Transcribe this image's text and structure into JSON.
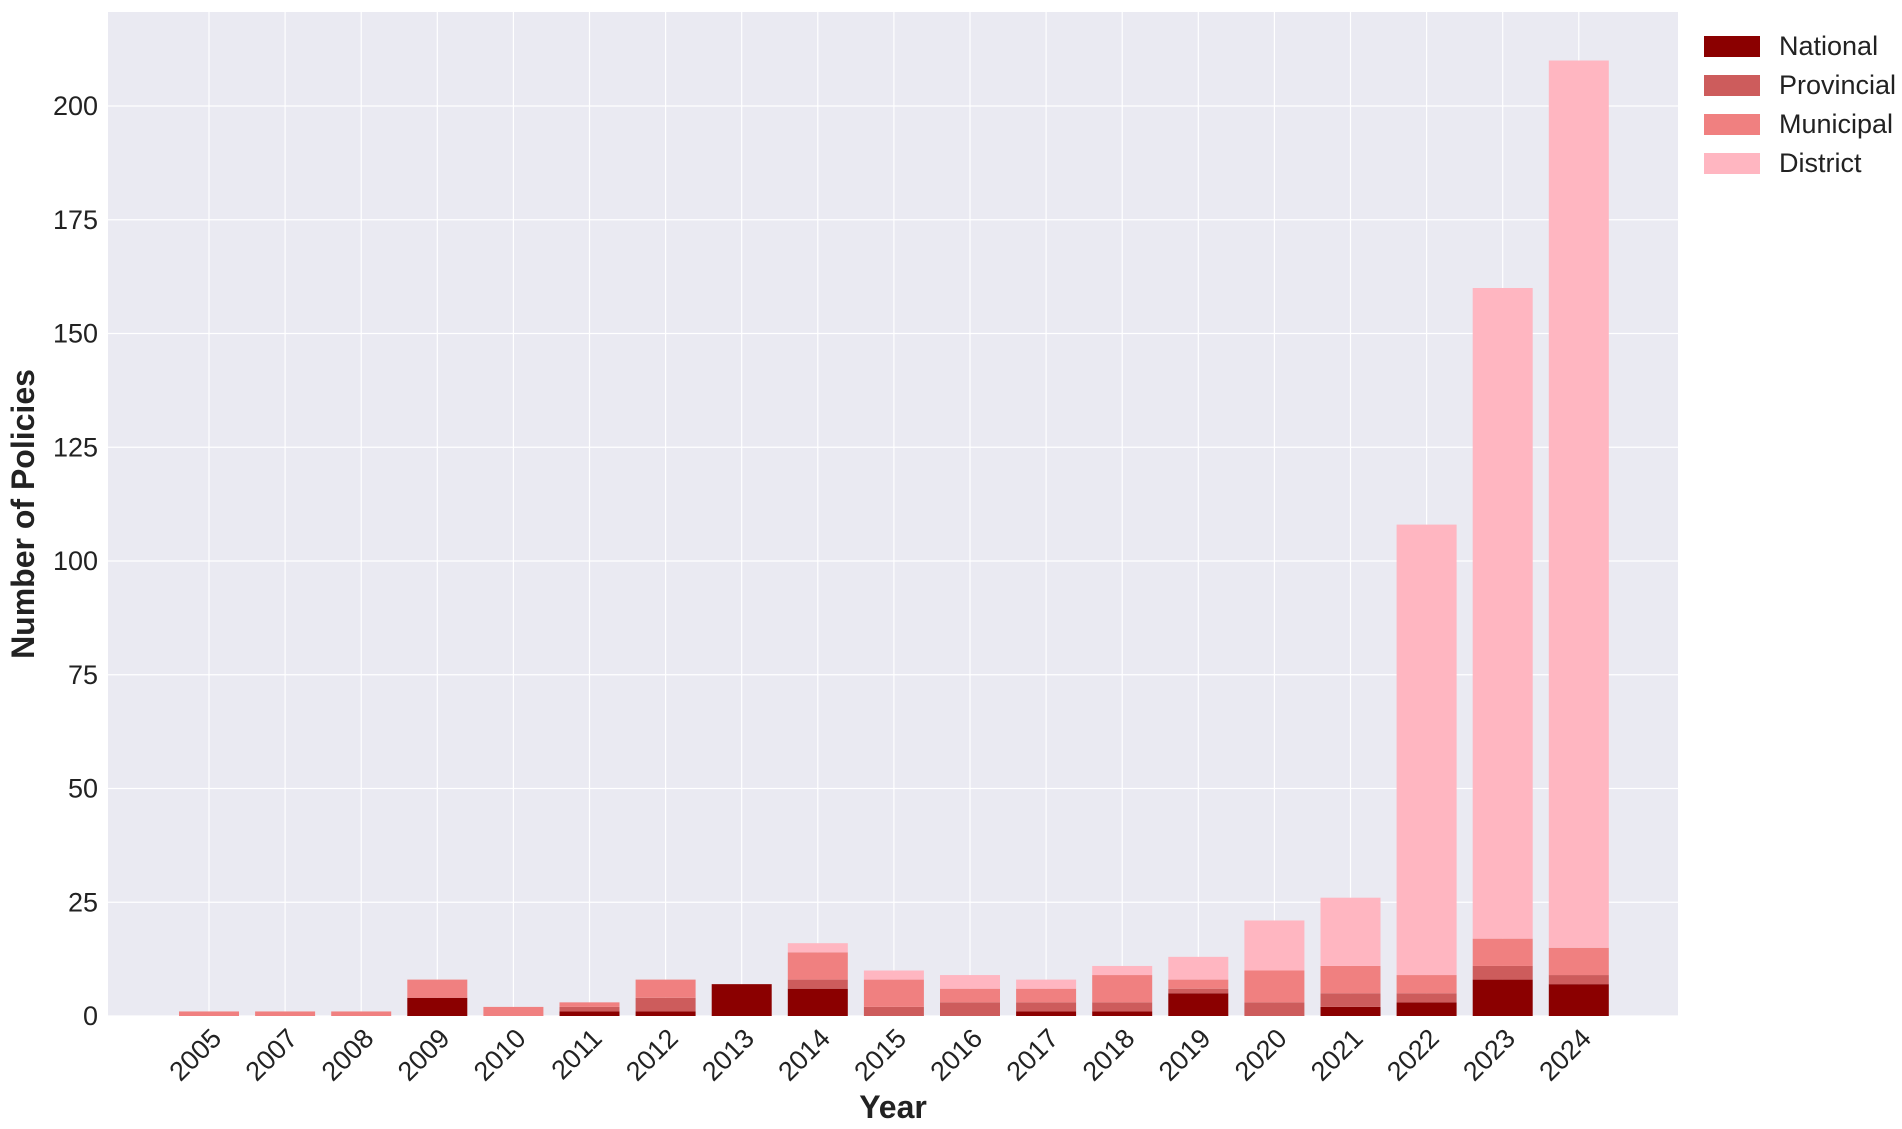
{
  "chart_data": {
    "type": "bar",
    "stacked": true,
    "categories": [
      "2005",
      "2007",
      "2008",
      "2009",
      "2010",
      "2011",
      "2012",
      "2013",
      "2014",
      "2015",
      "2016",
      "2017",
      "2018",
      "2019",
      "2020",
      "2021",
      "2022",
      "2023",
      "2024"
    ],
    "series": [
      {
        "name": "National",
        "color": "#8b0000",
        "values": [
          0,
          0,
          0,
          4,
          0,
          1,
          1,
          7,
          6,
          0,
          0,
          1,
          1,
          5,
          0,
          2,
          3,
          8,
          7
        ]
      },
      {
        "name": "Provincial",
        "color": "#cd5c5c",
        "values": [
          0,
          0,
          0,
          0,
          0,
          1,
          3,
          0,
          2,
          2,
          3,
          2,
          2,
          1,
          3,
          3,
          2,
          3,
          2
        ]
      },
      {
        "name": "Municipal",
        "color": "#f08080",
        "values": [
          1,
          1,
          1,
          4,
          2,
          1,
          4,
          0,
          6,
          6,
          3,
          3,
          6,
          2,
          7,
          6,
          4,
          6,
          6
        ]
      },
      {
        "name": "District",
        "color": "#ffb6c1",
        "values": [
          0,
          0,
          0,
          0,
          0,
          0,
          0,
          0,
          2,
          2,
          3,
          2,
          2,
          5,
          11,
          15,
          99,
          143,
          195
        ]
      }
    ],
    "xlabel": "Year",
    "ylabel": "Number of Policies",
    "ylim": [
      0,
      220
    ],
    "yticks": [
      0,
      25,
      50,
      75,
      100,
      125,
      150,
      175,
      200
    ],
    "grid": true,
    "legend_position": "top-right outside"
  }
}
